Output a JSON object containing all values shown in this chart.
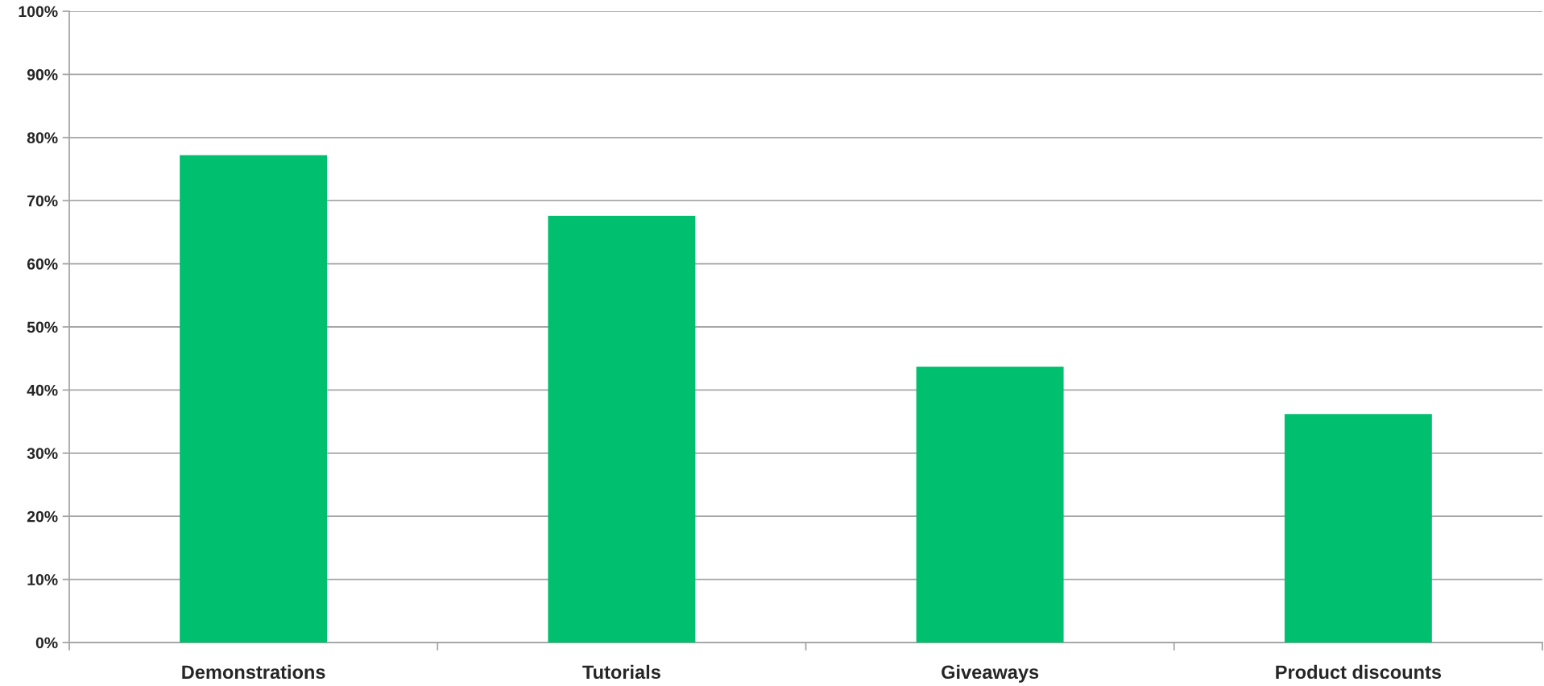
{
  "chart_data": {
    "type": "bar",
    "categories": [
      "Demonstrations",
      "Tutorials",
      "Giveaways",
      "Product discounts"
    ],
    "values": [
      77.2,
      67.6,
      43.7,
      36.2
    ],
    "color": "#00bf6f",
    "ylim": [
      0,
      100
    ],
    "yticks": [
      {
        "value": 0,
        "label": "0%"
      },
      {
        "value": 10,
        "label": "10%"
      },
      {
        "value": 20,
        "label": "20%"
      },
      {
        "value": 30,
        "label": "30%"
      },
      {
        "value": 40,
        "label": "40%"
      },
      {
        "value": 50,
        "label": "50%"
      },
      {
        "value": 60,
        "label": "60%"
      },
      {
        "value": 70,
        "label": "70%"
      },
      {
        "value": 80,
        "label": "80%"
      },
      {
        "value": 90,
        "label": "90%"
      },
      {
        "value": 100,
        "label": "100%"
      }
    ],
    "grid": "y"
  }
}
